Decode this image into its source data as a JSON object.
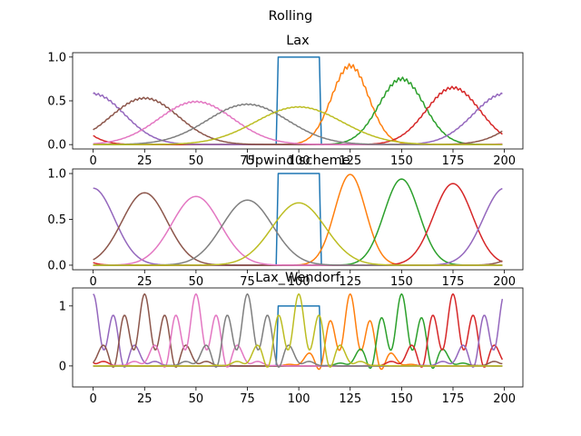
{
  "figure": {
    "suptitle": "Rolling"
  },
  "colors": [
    "#1f77b4",
    "#ff7f0e",
    "#2ca02c",
    "#d62728",
    "#9467bd",
    "#8c564b",
    "#e377c2",
    "#7f7f7f",
    "#bcbd22"
  ],
  "chart_data": [
    {
      "type": "line",
      "title": "Lax",
      "xlim": [
        -10,
        209
      ],
      "ylim": [
        -0.05,
        1.05
      ],
      "xticks": [
        0,
        25,
        50,
        75,
        100,
        125,
        150,
        175,
        200
      ],
      "yticks": [
        0.0,
        0.5,
        1.0
      ],
      "ytick_labels": [
        "0.0",
        "0.5",
        "1.0"
      ],
      "series": [
        {
          "kind": "square",
          "center": 100,
          "half_width": 10,
          "amplitude": 1.0
        },
        {
          "kind": "gauss",
          "center": 125,
          "amplitude": 0.9,
          "width": 9,
          "ripple": 0.025
        },
        {
          "kind": "gauss",
          "center": 150,
          "amplitude": 0.75,
          "width": 11,
          "ripple": 0.02
        },
        {
          "kind": "gauss",
          "center": 175,
          "amplitude": 0.65,
          "width": 13,
          "ripple": 0.015
        },
        {
          "kind": "gauss",
          "center": 200,
          "amplitude": 0.58,
          "width": 15,
          "ripple": 0.012
        },
        {
          "kind": "gauss",
          "center": 25,
          "amplitude": 0.53,
          "width": 16.5,
          "ripple": 0.01
        },
        {
          "kind": "gauss",
          "center": 50,
          "amplitude": 0.49,
          "width": 18,
          "ripple": 0.008
        },
        {
          "kind": "gauss",
          "center": 75,
          "amplitude": 0.46,
          "width": 19.5,
          "ripple": 0.006
        },
        {
          "kind": "gauss",
          "center": 100,
          "amplitude": 0.43,
          "width": 21,
          "ripple": 0.004
        }
      ]
    },
    {
      "type": "line",
      "title": "Upwind scheme",
      "xlim": [
        -10,
        209
      ],
      "ylim": [
        -0.05,
        1.05
      ],
      "xticks": [
        0,
        25,
        50,
        75,
        100,
        125,
        150,
        175,
        200
      ],
      "yticks": [
        0.0,
        0.5,
        1.0
      ],
      "ytick_labels": [
        "0.0",
        "0.5",
        "1.0"
      ],
      "series": [
        {
          "kind": "square",
          "center": 100,
          "half_width": 10,
          "amplitude": 1.0
        },
        {
          "kind": "gauss",
          "center": 125,
          "amplitude": 0.99,
          "width": 7.5
        },
        {
          "kind": "gauss",
          "center": 150,
          "amplitude": 0.94,
          "width": 8.5
        },
        {
          "kind": "gauss",
          "center": 175,
          "amplitude": 0.89,
          "width": 9.5
        },
        {
          "kind": "gauss",
          "center": 200,
          "amplitude": 0.84,
          "width": 10.3
        },
        {
          "kind": "gauss",
          "center": 25,
          "amplitude": 0.79,
          "width": 11
        },
        {
          "kind": "gauss",
          "center": 50,
          "amplitude": 0.75,
          "width": 11.7
        },
        {
          "kind": "gauss",
          "center": 75,
          "amplitude": 0.71,
          "width": 12.3
        },
        {
          "kind": "gauss",
          "center": 100,
          "amplitude": 0.68,
          "width": 13
        }
      ]
    },
    {
      "type": "line",
      "title": "Lax_Wendorf",
      "xlim": [
        -10,
        209
      ],
      "ylim": [
        -0.35,
        1.3
      ],
      "xticks": [
        0,
        25,
        50,
        75,
        100,
        125,
        150,
        175,
        200
      ],
      "yticks": [
        0,
        1
      ],
      "ytick_labels": [
        "0",
        "1"
      ],
      "series": [
        {
          "kind": "square",
          "center": 100,
          "half_width": 10,
          "amplitude": 1.0
        },
        {
          "kind": "osc",
          "center": 125,
          "amplitude": 1.2,
          "width": 11,
          "osc": 0.25
        },
        {
          "kind": "osc",
          "center": 150,
          "amplitude": 1.2,
          "width": 12,
          "osc": 0.25
        },
        {
          "kind": "osc",
          "center": 175,
          "amplitude": 1.2,
          "width": 13,
          "osc": 0.25
        },
        {
          "kind": "osc",
          "center": 200,
          "amplitude": 1.2,
          "width": 13,
          "osc": 0.25
        },
        {
          "kind": "osc",
          "center": 25,
          "amplitude": 1.2,
          "width": 13,
          "osc": 0.25
        },
        {
          "kind": "osc",
          "center": 50,
          "amplitude": 1.2,
          "width": 13,
          "osc": 0.25
        },
        {
          "kind": "osc",
          "center": 75,
          "amplitude": 1.2,
          "width": 13,
          "osc": 0.25
        },
        {
          "kind": "osc",
          "center": 100,
          "amplitude": 1.2,
          "width": 13,
          "osc": 0.25
        }
      ]
    }
  ]
}
